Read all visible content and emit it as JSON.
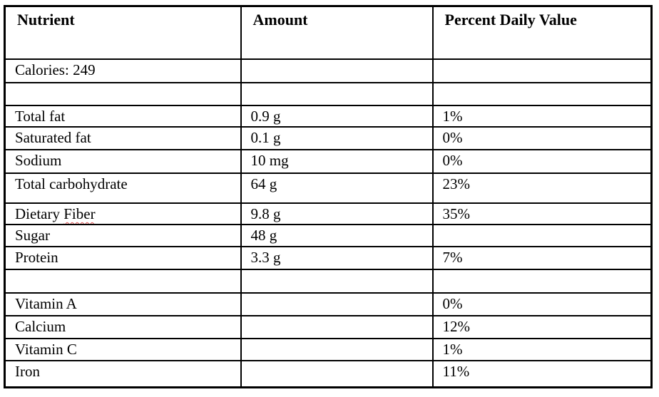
{
  "table": {
    "headers": [
      "Nutrient",
      "Amount",
      "Percent Daily Value"
    ],
    "rows": [
      {
        "nutrient": "Calories: 249",
        "amount": "",
        "pdv": ""
      },
      {
        "nutrient": "",
        "amount": "",
        "pdv": ""
      },
      {
        "nutrient": "Total fat",
        "amount": "0.9 g",
        "pdv": "1%"
      },
      {
        "nutrient": "Saturated fat",
        "amount": "0.1 g",
        "pdv": "0%"
      },
      {
        "nutrient": "Sodium",
        "amount": "10 mg",
        "pdv": "0%"
      },
      {
        "nutrient": "Total carbohydrate",
        "amount": "64 g",
        "pdv": "23%"
      },
      {
        "nutrient": "Dietary Fiber",
        "amount": "9.8 g",
        "pdv": "35%",
        "spellcheck_word": "Fiber"
      },
      {
        "nutrient": "Sugar",
        "amount": "48 g",
        "pdv": ""
      },
      {
        "nutrient": "Protein",
        "amount": "3.3 g",
        "pdv": "7%"
      },
      {
        "nutrient": "",
        "amount": "",
        "pdv": ""
      },
      {
        "nutrient": "Vitamin A",
        "amount": "",
        "pdv": "0%"
      },
      {
        "nutrient": "Calcium",
        "amount": "",
        "pdv": "12%"
      },
      {
        "nutrient": "Vitamin C",
        "amount": "",
        "pdv": "1%"
      },
      {
        "nutrient": "Iron",
        "amount": "",
        "pdv": "11%"
      }
    ]
  },
  "colors": {
    "border": "#000000",
    "text": "#000000",
    "spellcheck_underline": "#e05050"
  }
}
